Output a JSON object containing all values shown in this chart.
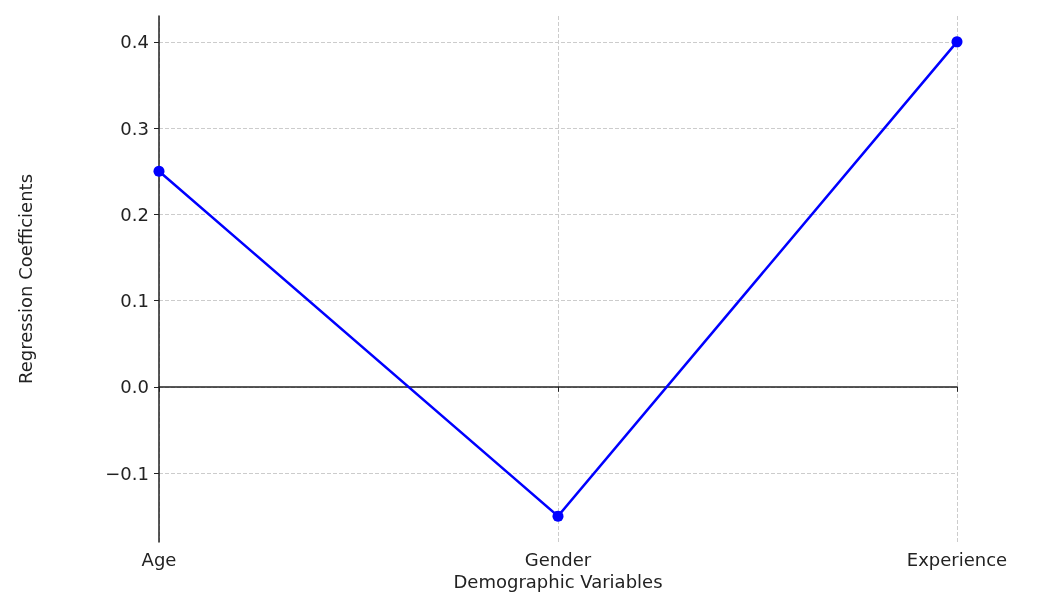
{
  "chart_data": {
    "type": "line",
    "xlabel": "Demographic Variables",
    "ylabel": "Regression Coefficients",
    "categories": [
      "Age",
      "Gender",
      "Experience"
    ],
    "series": [
      {
        "color": "#0000ff",
        "values": [
          0.25,
          -0.15,
          0.4
        ]
      }
    ],
    "ylim": [
      -0.18,
      0.43
    ],
    "yticks": [
      {
        "value": -0.1,
        "label": "−0.1"
      },
      {
        "value": 0,
        "label": "0.0"
      },
      0.1,
      0.2,
      0.3,
      0.4
    ],
    "grid": true,
    "marker": "circle",
    "line_style": "solid"
  }
}
